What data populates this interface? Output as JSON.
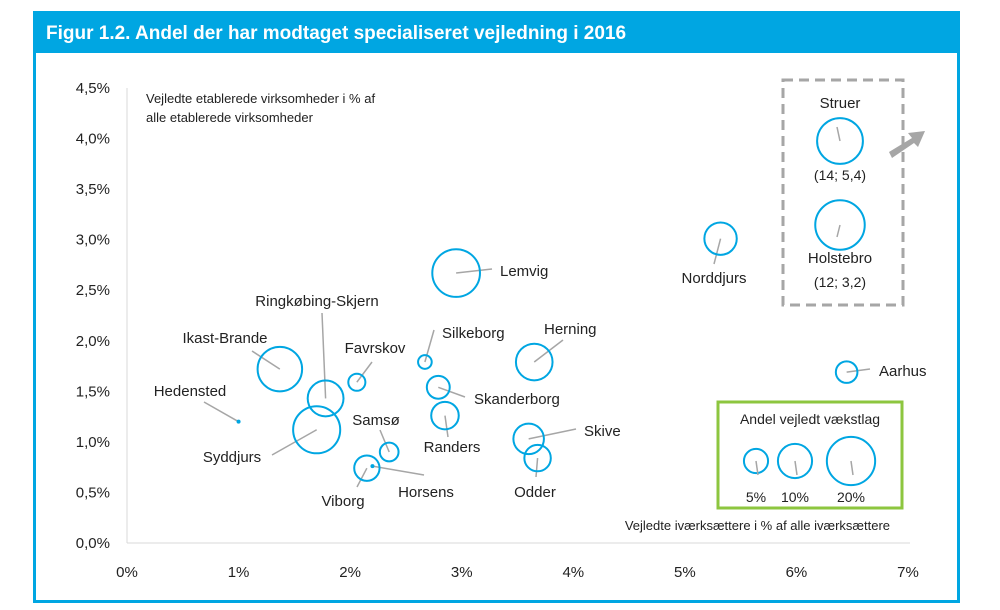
{
  "title": "Figur 1.2. Andel der har modtaget specialiseret vejledning i 2016",
  "colors": {
    "accent": "#00a6e2",
    "bubble": "#00a6e2",
    "leader": "#a6a6a6",
    "legend_border": "#8dc63f",
    "inset_border": "#a6a6a6"
  },
  "chart_data": {
    "type": "scatter",
    "xlabel": "Vejledte iværksættere i % af alle iværksættere",
    "ylabel_line1": "Vejledte etablerede virksomheder i % af",
    "ylabel_line2": "alle etablerede virksomheder",
    "xlim": [
      0,
      7
    ],
    "ylim": [
      0,
      4.5
    ],
    "x_ticks": [
      "0%",
      "1%",
      "2%",
      "3%",
      "4%",
      "5%",
      "6%",
      "7%"
    ],
    "y_ticks": [
      "0,0%",
      "0,5%",
      "1,0%",
      "1,5%",
      "2,0%",
      "2,5%",
      "3,0%",
      "3,5%",
      "4,0%",
      "4,5%"
    ],
    "size_meaning": "Andel vejledt vækstlag",
    "points": [
      {
        "name": "Lemvig",
        "x": 2.95,
        "y": 2.67,
        "size": 19.5
      },
      {
        "name": "Norddjurs",
        "x": 5.32,
        "y": 3.01,
        "size": 9
      },
      {
        "name": "Herning",
        "x": 3.65,
        "y": 1.79,
        "size": 11.5
      },
      {
        "name": "Silkeborg",
        "x": 2.67,
        "y": 1.79,
        "size": 1.6
      },
      {
        "name": "Aarhus",
        "x": 6.45,
        "y": 1.69,
        "size": 4
      },
      {
        "name": "Ringkøbing-Skjern",
        "x": 1.78,
        "y": 1.43,
        "size": 11
      },
      {
        "name": "Ikast-Brande",
        "x": 1.37,
        "y": 1.72,
        "size": 17
      },
      {
        "name": "Favrskov",
        "x": 2.06,
        "y": 1.59,
        "size": 2.5
      },
      {
        "name": "Skanderborg",
        "x": 2.79,
        "y": 1.54,
        "size": 4.5
      },
      {
        "name": "Hedensted",
        "x": 1.0,
        "y": 1.2,
        "size": 0.05
      },
      {
        "name": "Syddjurs",
        "x": 1.7,
        "y": 1.12,
        "size": 19
      },
      {
        "name": "Randers",
        "x": 2.85,
        "y": 1.26,
        "size": 6.5
      },
      {
        "name": "Skive",
        "x": 3.6,
        "y": 1.03,
        "size": 8
      },
      {
        "name": "Samsø",
        "x": 2.35,
        "y": 0.9,
        "size": 3
      },
      {
        "name": "Odder",
        "x": 3.68,
        "y": 0.84,
        "size": 6
      },
      {
        "name": "Viborg",
        "x": 2.15,
        "y": 0.74,
        "size": 5.5
      },
      {
        "name": "Horsens",
        "x": 2.2,
        "y": 0.76,
        "size": 0.05
      }
    ],
    "inset_points": [
      {
        "name": "Struer",
        "coords": "(14; 5,4)",
        "size": 18
      },
      {
        "name": "Holstebro",
        "coords": "(12; 3,2)",
        "size": 21
      }
    ],
    "legend": {
      "title": "Andel vejledt vækstlag",
      "items": [
        {
          "label": "5%",
          "size": 5
        },
        {
          "label": "10%",
          "size": 10
        },
        {
          "label": "20%",
          "size": 20
        }
      ]
    }
  }
}
